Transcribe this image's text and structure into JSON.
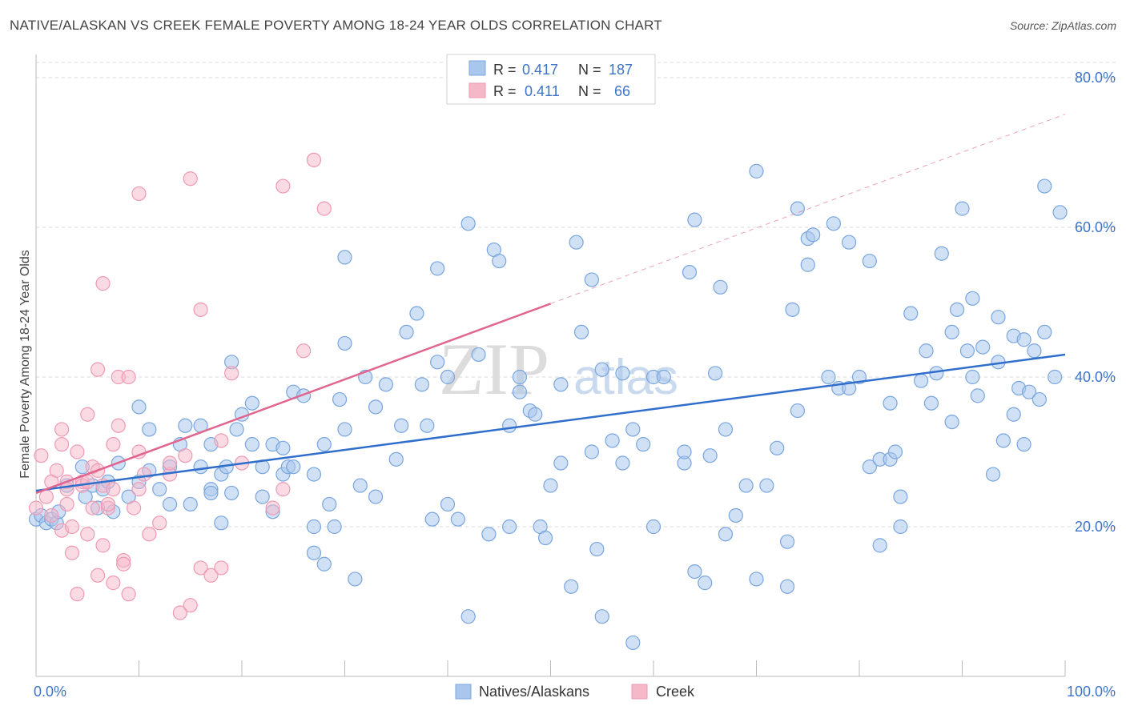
{
  "header": {
    "title": "NATIVE/ALASKAN VS CREEK FEMALE POVERTY AMONG 18-24 YEAR OLDS CORRELATION CHART",
    "source": "Source: ZipAtlas.com"
  },
  "watermark": {
    "zip": "ZIP",
    "atlas": "atlas"
  },
  "legend_box": {
    "rows": [
      {
        "r_label": "R =",
        "r_value": "0.417",
        "n_label": "N =",
        "n_value": "187"
      },
      {
        "r_label": "R =",
        "r_value": "0.411",
        "n_label": "N =",
        "n_value": "66"
      }
    ]
  },
  "bottom_legend": [
    "Natives/Alaskans",
    "Creek"
  ],
  "chart_data": {
    "type": "scatter",
    "title": "NATIVE/ALASKAN VS CREEK FEMALE POVERTY AMONG 18-24 YEAR OLDS CORRELATION CHART",
    "xlabel": "",
    "ylabel": "Female Poverty Among 18-24 Year Olds",
    "xlim": [
      0,
      100
    ],
    "ylim": [
      0,
      83
    ],
    "x_tick_labels": [
      "0.0%",
      "100.0%"
    ],
    "y_ticks": [
      20,
      40,
      60,
      80
    ],
    "y_tick_labels": [
      "20.0%",
      "40.0%",
      "60.0%",
      "80.0%"
    ],
    "grid": true,
    "legend_placement": "bottom-center",
    "colors": {
      "natives_fill": "#a9c6ec",
      "natives_stroke": "#7aa6de",
      "natives_line": "#2f6fcb",
      "creek_fill": "#f5b8c9",
      "creek_stroke": "#ee9ab3",
      "creek_line": "#e0668f",
      "value_text": "#3d73c8",
      "grid": "#d8d8d8"
    },
    "series": [
      {
        "name": "Natives/Alaskans",
        "r": 0.417,
        "n": 187,
        "trend": {
          "x": [
            0,
            100
          ],
          "y": [
            24.8,
            43.0
          ]
        },
        "points": [
          [
            0,
            21
          ],
          [
            0.5,
            21.5
          ],
          [
            1,
            20.5
          ],
          [
            1.5,
            21
          ],
          [
            2,
            20.5
          ],
          [
            2.2,
            22
          ],
          [
            3,
            25.5
          ],
          [
            4.5,
            28
          ],
          [
            4.8,
            24
          ],
          [
            5.5,
            25.5
          ],
          [
            6,
            22.5
          ],
          [
            6.5,
            25
          ],
          [
            7,
            26
          ],
          [
            7.5,
            22
          ],
          [
            8,
            28.5
          ],
          [
            9,
            24
          ],
          [
            10,
            26
          ],
          [
            10,
            36
          ],
          [
            11,
            27.5
          ],
          [
            11,
            33
          ],
          [
            12,
            25
          ],
          [
            13,
            23
          ],
          [
            13,
            28
          ],
          [
            14,
            31
          ],
          [
            14.5,
            33.5
          ],
          [
            15,
            23
          ],
          [
            16,
            28
          ],
          [
            16,
            33.5
          ],
          [
            17,
            25
          ],
          [
            17,
            31
          ],
          [
            17,
            24.5
          ],
          [
            18,
            27
          ],
          [
            18.5,
            28
          ],
          [
            18,
            20.5
          ],
          [
            19,
            42
          ],
          [
            19.5,
            33
          ],
          [
            19,
            24.5
          ],
          [
            20,
            35
          ],
          [
            21,
            36.5
          ],
          [
            21,
            31
          ],
          [
            22,
            28
          ],
          [
            22,
            24
          ],
          [
            23,
            22
          ],
          [
            23,
            31
          ],
          [
            24,
            27
          ],
          [
            24.5,
            28
          ],
          [
            24,
            30.5
          ],
          [
            25,
            38
          ],
          [
            25,
            28
          ],
          [
            26,
            37.5
          ],
          [
            27,
            27
          ],
          [
            27,
            20
          ],
          [
            27,
            16.5
          ],
          [
            28,
            15
          ],
          [
            28,
            31
          ],
          [
            28.5,
            23
          ],
          [
            29,
            20
          ],
          [
            29.5,
            37
          ],
          [
            30,
            33
          ],
          [
            30,
            44.5
          ],
          [
            30,
            56
          ],
          [
            31,
            13
          ],
          [
            31.5,
            25.5
          ],
          [
            32,
            40
          ],
          [
            33,
            24
          ],
          [
            33,
            36
          ],
          [
            34,
            39
          ],
          [
            35,
            29
          ],
          [
            35.5,
            33.5
          ],
          [
            36,
            46
          ],
          [
            37,
            48.5
          ],
          [
            37.5,
            39
          ],
          [
            38,
            33.5
          ],
          [
            38.5,
            21
          ],
          [
            39,
            42
          ],
          [
            39,
            54.5
          ],
          [
            40,
            40
          ],
          [
            40,
            23
          ],
          [
            41,
            21
          ],
          [
            42,
            60.5
          ],
          [
            42,
            8
          ],
          [
            43,
            43
          ],
          [
            44,
            19
          ],
          [
            44.5,
            57
          ],
          [
            45,
            55.5
          ],
          [
            46,
            20
          ],
          [
            46,
            33.5
          ],
          [
            47,
            40
          ],
          [
            47,
            38
          ],
          [
            48,
            35.5
          ],
          [
            48.5,
            35
          ],
          [
            49,
            20
          ],
          [
            49.5,
            18.5
          ],
          [
            50,
            25.5
          ],
          [
            51,
            28.5
          ],
          [
            51,
            39
          ],
          [
            52,
            12
          ],
          [
            52.5,
            58
          ],
          [
            53,
            46
          ],
          [
            54,
            30
          ],
          [
            54,
            53
          ],
          [
            54.5,
            17
          ],
          [
            55,
            8
          ],
          [
            55,
            41
          ],
          [
            56,
            31.5
          ],
          [
            57,
            28.5
          ],
          [
            57,
            40.5
          ],
          [
            58,
            33
          ],
          [
            58,
            4.5
          ],
          [
            59,
            31
          ],
          [
            60,
            20
          ],
          [
            60,
            40
          ],
          [
            61,
            40
          ],
          [
            63,
            28.5
          ],
          [
            63,
            30
          ],
          [
            63.5,
            54
          ],
          [
            64,
            61
          ],
          [
            64,
            14
          ],
          [
            65,
            12.5
          ],
          [
            65.5,
            29.5
          ],
          [
            66,
            40.5
          ],
          [
            66.5,
            52
          ],
          [
            67,
            33
          ],
          [
            67,
            19
          ],
          [
            68,
            21.5
          ],
          [
            69,
            25.5
          ],
          [
            70,
            67.5
          ],
          [
            70,
            13
          ],
          [
            71,
            25.5
          ],
          [
            72,
            30.5
          ],
          [
            73,
            18
          ],
          [
            73,
            12
          ],
          [
            73.5,
            49
          ],
          [
            74,
            62.5
          ],
          [
            74,
            35.5
          ],
          [
            75,
            58.5
          ],
          [
            75.5,
            59
          ],
          [
            75,
            55
          ],
          [
            77,
            40
          ],
          [
            77.5,
            60.5
          ],
          [
            78,
            38.5
          ],
          [
            79,
            58
          ],
          [
            79,
            38.5
          ],
          [
            80,
            40
          ],
          [
            81,
            55.5
          ],
          [
            81,
            28
          ],
          [
            82,
            29
          ],
          [
            82,
            17.5
          ],
          [
            83,
            36.5
          ],
          [
            83,
            29
          ],
          [
            83.5,
            30
          ],
          [
            84,
            24
          ],
          [
            84,
            20
          ],
          [
            85,
            48.5
          ],
          [
            86,
            39.5
          ],
          [
            86.5,
            43.5
          ],
          [
            87,
            36.5
          ],
          [
            87.5,
            40.5
          ],
          [
            88,
            56.5
          ],
          [
            89,
            34
          ],
          [
            89,
            46
          ],
          [
            89.5,
            49
          ],
          [
            90,
            62.5
          ],
          [
            90.5,
            43.5
          ],
          [
            91,
            50.5
          ],
          [
            91,
            40
          ],
          [
            91.5,
            37.5
          ],
          [
            92,
            44
          ],
          [
            93,
            27
          ],
          [
            93.5,
            42
          ],
          [
            93.5,
            48
          ],
          [
            94,
            31.5
          ],
          [
            95,
            45.5
          ],
          [
            95,
            35
          ],
          [
            95.5,
            38.5
          ],
          [
            96,
            45
          ],
          [
            96,
            31
          ],
          [
            96.5,
            38
          ],
          [
            97,
            43.5
          ],
          [
            97.5,
            37
          ],
          [
            98,
            65.5
          ],
          [
            98,
            46
          ],
          [
            99,
            40
          ],
          [
            99.5,
            62
          ]
        ]
      },
      {
        "name": "Creek",
        "r": 0.411,
        "n": 66,
        "trend": {
          "x": [
            0,
            50
          ],
          "y": [
            24.5,
            49.8
          ]
        },
        "points": [
          [
            0,
            22.5
          ],
          [
            0.5,
            29.5
          ],
          [
            1,
            24
          ],
          [
            1.5,
            26
          ],
          [
            1.5,
            21.5
          ],
          [
            2,
            27.5
          ],
          [
            2.5,
            19.5
          ],
          [
            2.5,
            33
          ],
          [
            2.5,
            31
          ],
          [
            3,
            26
          ],
          [
            3,
            23
          ],
          [
            3,
            25
          ],
          [
            3.5,
            16.5
          ],
          [
            3.5,
            20
          ],
          [
            4,
            11
          ],
          [
            4,
            30
          ],
          [
            4.5,
            26
          ],
          [
            4.5,
            25.5
          ],
          [
            5,
            26
          ],
          [
            5,
            35
          ],
          [
            5,
            19
          ],
          [
            5.5,
            28
          ],
          [
            6,
            27.5
          ],
          [
            6,
            13.5
          ],
          [
            6,
            41
          ],
          [
            6.5,
            17.5
          ],
          [
            6.5,
            25.5
          ],
          [
            6.5,
            52.5
          ],
          [
            7,
            22.5
          ],
          [
            7,
            23
          ],
          [
            7.5,
            25
          ],
          [
            7.5,
            12.5
          ],
          [
            7.5,
            31
          ],
          [
            8,
            33.5
          ],
          [
            8,
            40
          ],
          [
            8.5,
            15.5
          ],
          [
            8.5,
            15
          ],
          [
            9,
            11
          ],
          [
            9,
            40
          ],
          [
            9.5,
            22.5
          ],
          [
            10,
            30
          ],
          [
            10,
            64.5
          ],
          [
            10,
            25
          ],
          [
            10.5,
            27
          ],
          [
            11,
            19
          ],
          [
            12,
            20.5
          ],
          [
            13,
            27
          ],
          [
            13,
            28.5
          ],
          [
            14,
            8.5
          ],
          [
            14.5,
            29.5
          ],
          [
            15,
            66.5
          ],
          [
            15,
            9.5
          ],
          [
            16,
            14.5
          ],
          [
            16,
            49
          ],
          [
            17,
            13.5
          ],
          [
            18,
            14.5
          ],
          [
            18,
            31.5
          ],
          [
            19,
            40.5
          ],
          [
            20,
            28.5
          ],
          [
            23,
            22.5
          ],
          [
            24,
            25
          ],
          [
            24,
            65.5
          ],
          [
            26,
            43.5
          ],
          [
            27,
            69
          ],
          [
            28,
            62.5
          ],
          [
            5.5,
            22.5
          ]
        ]
      }
    ]
  }
}
